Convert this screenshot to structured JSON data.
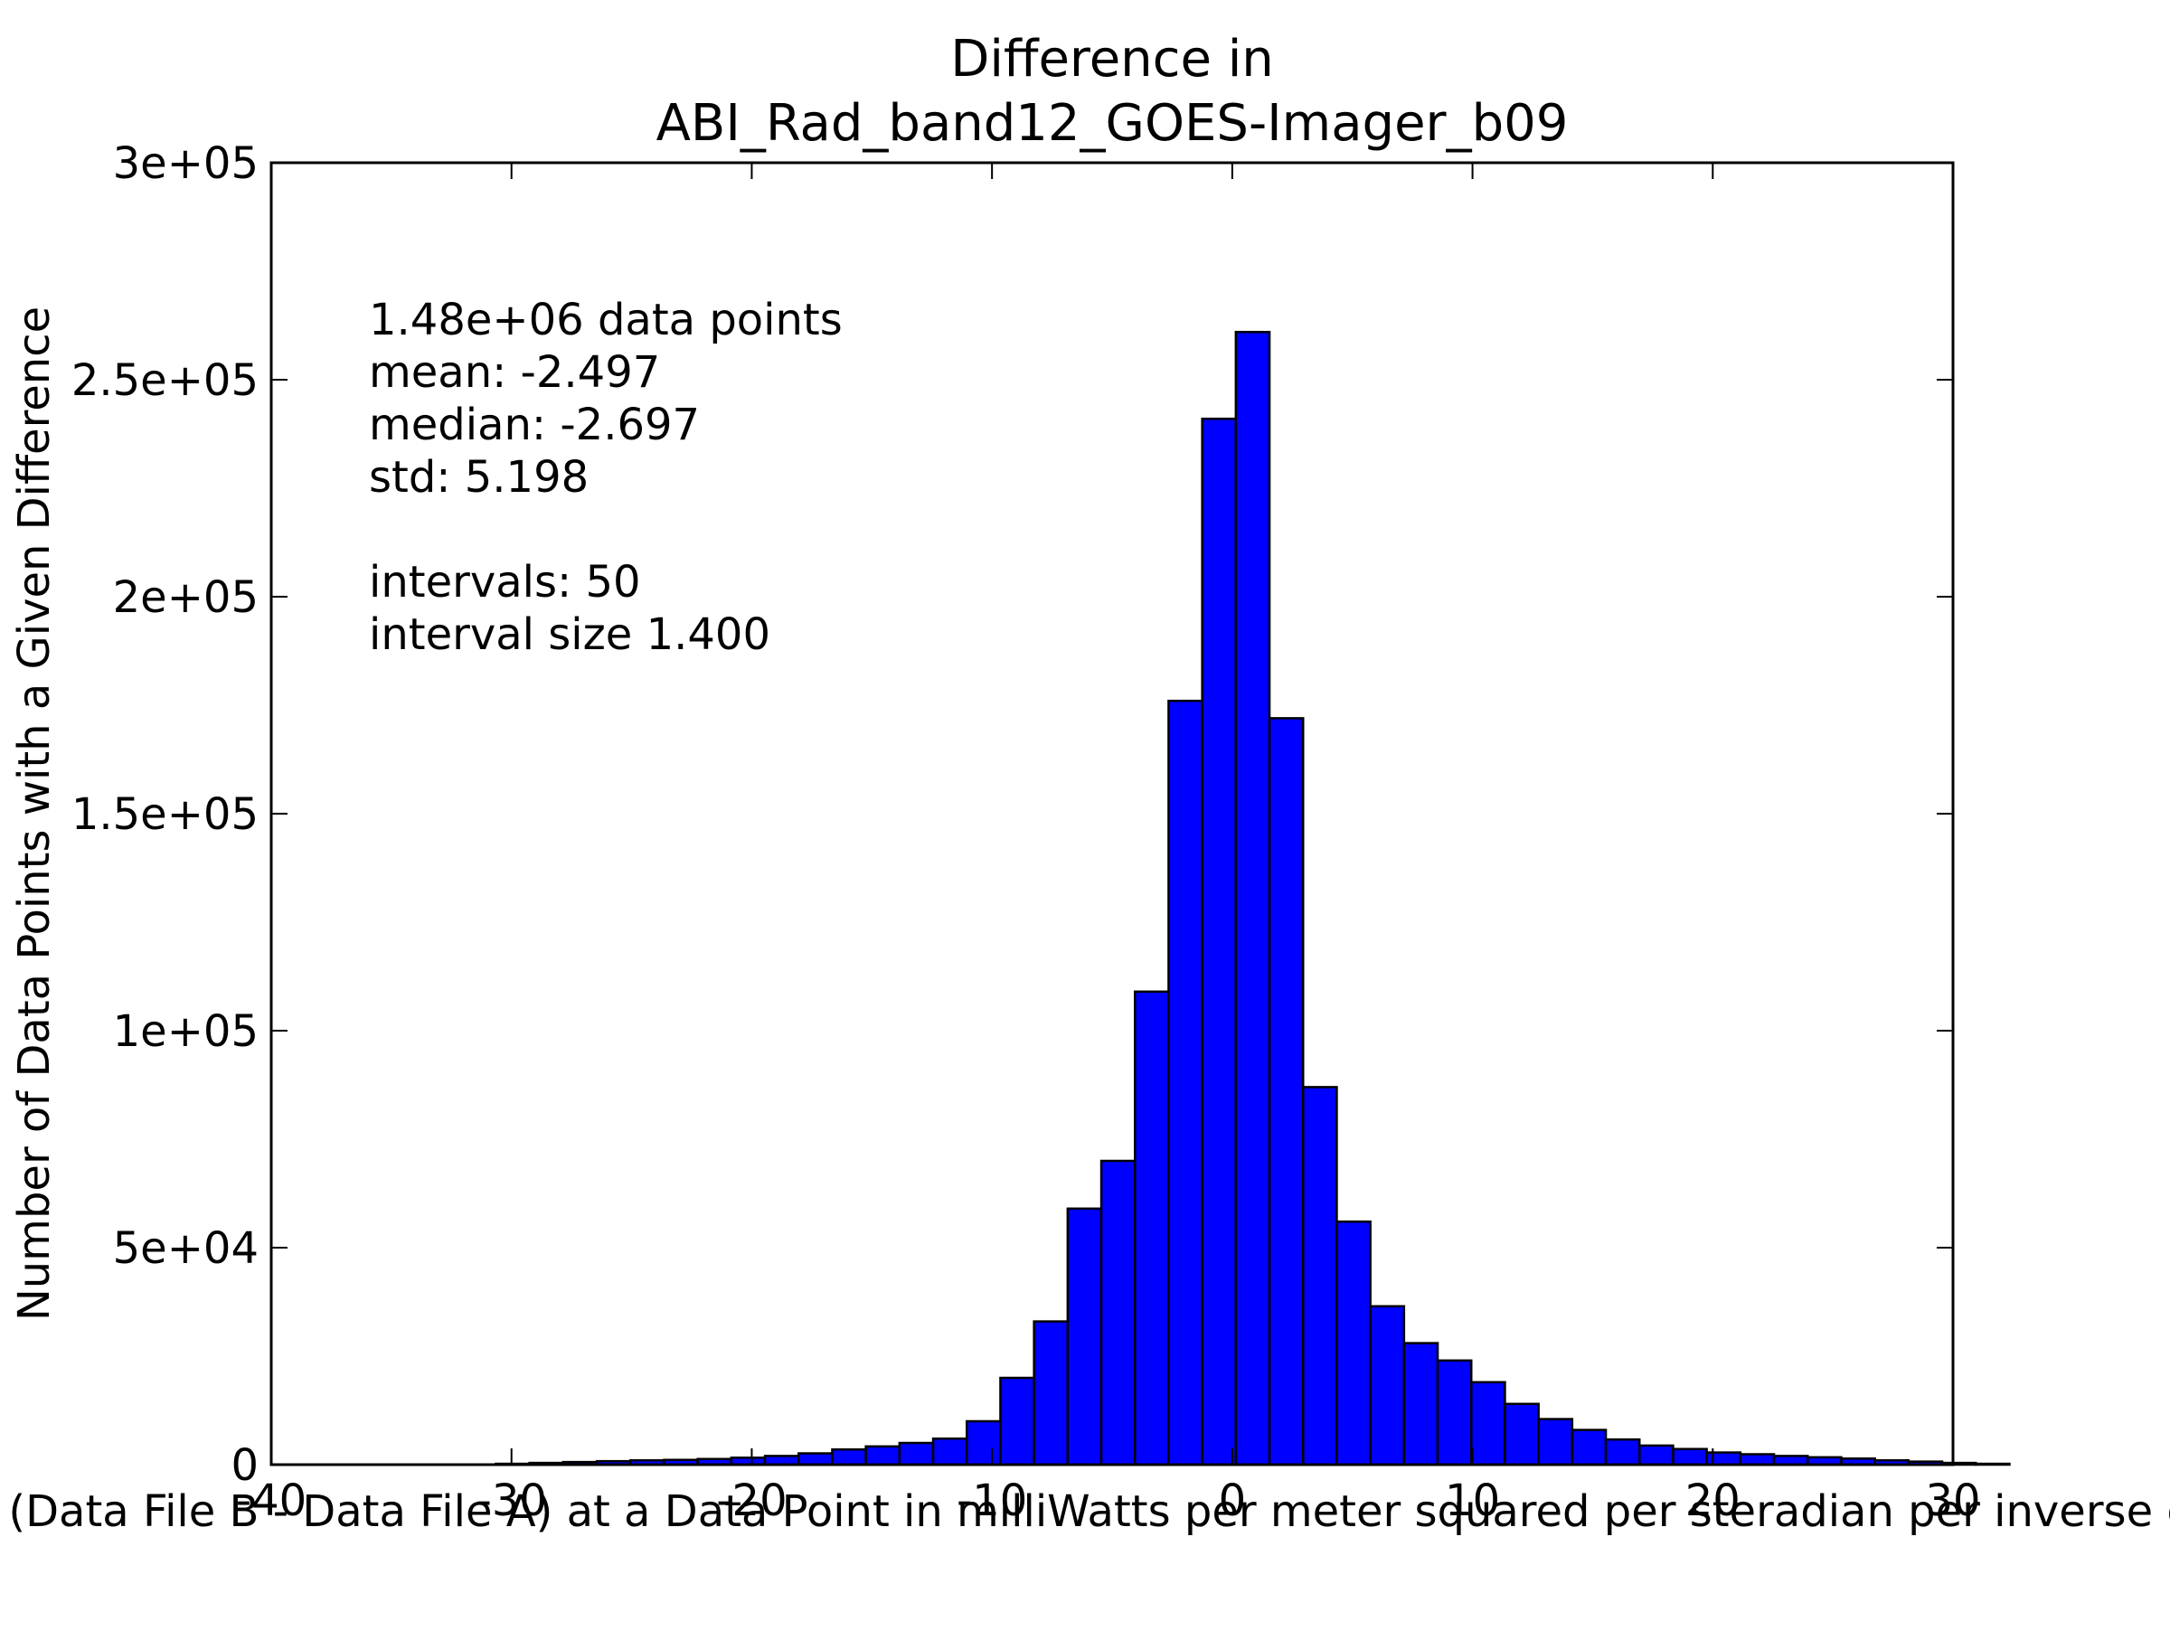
{
  "chart_data": {
    "type": "bar",
    "title": [
      "Difference in",
      "ABI_Rad_band12_GOES-Imager_b09"
    ],
    "xlabel": "Value of (Data File B - Data File A) at a Data Point in milliWatts per meter squared per steradian per inverse centimeter",
    "ylabel": "Number of Data Points with a Given Difference",
    "xlim": [
      -40,
      30
    ],
    "ylim": [
      0,
      300000
    ],
    "grid": false,
    "legend": "none",
    "bar_color": "#0000ff",
    "edge_color": "#000000",
    "x_ticks": [
      -40,
      -30,
      -20,
      -10,
      0,
      10,
      20,
      30
    ],
    "x_tick_labels": [
      "-40",
      "-30",
      "-20",
      "-10",
      "0",
      "10",
      "20",
      "30"
    ],
    "y_ticks": [
      0,
      50000,
      100000,
      150000,
      200000,
      250000,
      300000
    ],
    "y_tick_labels": [
      "0",
      "5e+04",
      "1e+05",
      "1.5e+05",
      "2e+05",
      "2.5e+05",
      "3e+05"
    ],
    "bins": {
      "left_edges": [
        -36.25,
        -34.85,
        -33.45,
        -32.05,
        -30.65,
        -29.25,
        -27.85,
        -26.45,
        -25.05,
        -23.65,
        -22.25,
        -20.85,
        -19.45,
        -18.05,
        -16.65,
        -15.25,
        -13.85,
        -12.45,
        -11.05,
        -9.65,
        -8.25,
        -6.85,
        -5.45,
        -4.05,
        -2.65,
        -1.25,
        0.15,
        1.55,
        2.95,
        4.35,
        5.75,
        7.15,
        8.55,
        9.95,
        11.35,
        12.75,
        14.15,
        15.55,
        16.95,
        18.35,
        19.75,
        21.15,
        22.55,
        23.95,
        25.35,
        26.75,
        28.15,
        29.55,
        30.95,
        32.35
      ],
      "width": 1.4
    },
    "values": [
      0,
      0,
      0,
      0,
      200,
      400,
      600,
      800,
      1000,
      1100,
      1300,
      1600,
      2000,
      2600,
      3500,
      4200,
      5000,
      6000,
      10000,
      20000,
      33000,
      59000,
      70000,
      109000,
      176000,
      241000,
      261000,
      172000,
      87000,
      56000,
      36500,
      28000,
      24000,
      19000,
      14000,
      10500,
      8000,
      5800,
      4400,
      3600,
      2800,
      2400,
      2000,
      1700,
      1400,
      1000,
      700,
      400,
      200,
      0
    ],
    "annotation": [
      "1.48e+06 data points",
      "mean: -2.497",
      "median: -2.697",
      "std: 5.198",
      "",
      "intervals: 50",
      "interval size 1.400"
    ]
  }
}
